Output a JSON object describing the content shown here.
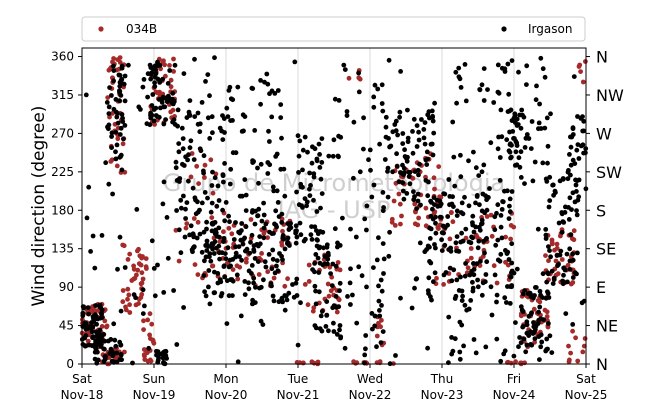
{
  "chart_data": {
    "type": "scatter",
    "ylabel": "Wind direction (degree)",
    "ylim": [
      0,
      370
    ],
    "yticks": [
      0,
      45,
      90,
      135,
      180,
      225,
      270,
      315,
      360
    ],
    "xlim_days": [
      0,
      7
    ],
    "xticks": [
      {
        "day": 0,
        "weekday": "Sat",
        "date": "Nov-18"
      },
      {
        "day": 1,
        "weekday": "Sun",
        "date": "Nov-19"
      },
      {
        "day": 2,
        "weekday": "Mon",
        "date": "Nov-20"
      },
      {
        "day": 3,
        "weekday": "Tue",
        "date": "Nov-21"
      },
      {
        "day": 4,
        "weekday": "Wed",
        "date": "Nov-22"
      },
      {
        "day": 5,
        "weekday": "Thu",
        "date": "Nov-23"
      },
      {
        "day": 6,
        "weekday": "Fri",
        "date": "Nov-24"
      },
      {
        "day": 7,
        "weekday": "Sat",
        "date": "Nov-25"
      }
    ],
    "right_axis_labels": [
      {
        "deg": 0,
        "label": "N"
      },
      {
        "deg": 45,
        "label": "NE"
      },
      {
        "deg": 90,
        "label": "E"
      },
      {
        "deg": 135,
        "label": "SE"
      },
      {
        "deg": 180,
        "label": "S"
      },
      {
        "deg": 225,
        "label": "SW"
      },
      {
        "deg": 270,
        "label": "W"
      },
      {
        "deg": 315,
        "label": "NW"
      },
      {
        "deg": 360,
        "label": "N"
      }
    ],
    "legend": {
      "placement": "top",
      "ncol": 2
    },
    "watermark": [
      "Grupo de Micrometeorologia",
      "IAG - USP"
    ],
    "grid": "vertical",
    "series": [
      {
        "name": "034B",
        "color": "#a52a2a",
        "clusters": [
          {
            "x": [
              0.0,
              0.35
            ],
            "y": [
              20,
              70
            ],
            "n": 60
          },
          {
            "x": [
              0.25,
              0.6
            ],
            "y": [
              0,
              20
            ],
            "n": 25
          },
          {
            "x": [
              0.35,
              0.6
            ],
            "y": [
              220,
              360
            ],
            "n": 40
          },
          {
            "x": [
              0.55,
              0.9
            ],
            "y": [
              60,
              140
            ],
            "n": 40
          },
          {
            "x": [
              0.85,
              1.0
            ],
            "y": [
              0,
              60
            ],
            "n": 20
          },
          {
            "x": [
              0.95,
              1.3
            ],
            "y": [
              280,
              360
            ],
            "n": 45
          },
          {
            "x": [
              1.3,
              2.0
            ],
            "y": [
              100,
              250
            ],
            "n": 30
          },
          {
            "x": [
              1.8,
              2.9
            ],
            "y": [
              90,
              170
            ],
            "n": 60
          },
          {
            "x": [
              2.95,
              3.3
            ],
            "y": [
              0,
              3
            ],
            "n": 8
          },
          {
            "x": [
              3.1,
              3.6
            ],
            "y": [
              60,
              130
            ],
            "n": 30
          },
          {
            "x": [
              3.7,
              4.0
            ],
            "y": [
              330,
              350
            ],
            "n": 4
          },
          {
            "x": [
              3.75,
              4.4
            ],
            "y": [
              0,
              3
            ],
            "n": 10
          },
          {
            "x": [
              4.1,
              4.2
            ],
            "y": [
              20,
              60
            ],
            "n": 8
          },
          {
            "x": [
              4.3,
              5.0
            ],
            "y": [
              160,
              250
            ],
            "n": 50
          },
          {
            "x": [
              4.9,
              6.0
            ],
            "y": [
              90,
              180
            ],
            "n": 50
          },
          {
            "x": [
              5.9,
              6.2
            ],
            "y": [
              0,
              3
            ],
            "n": 8
          },
          {
            "x": [
              6.1,
              6.5
            ],
            "y": [
              20,
              90
            ],
            "n": 40
          },
          {
            "x": [
              6.4,
              6.85
            ],
            "y": [
              90,
              160
            ],
            "n": 40
          },
          {
            "x": [
              6.75,
              7.0
            ],
            "y": [
              0,
              40
            ],
            "n": 10
          },
          {
            "x": [
              6.9,
              7.0
            ],
            "y": [
              330,
              360
            ],
            "n": 5
          }
        ]
      },
      {
        "name": "Irgason",
        "color": "#000000",
        "clusters": [
          {
            "x": [
              0.0,
              0.3
            ],
            "y": [
              20,
              70
            ],
            "n": 60
          },
          {
            "x": [
              0.15,
              0.55
            ],
            "y": [
              0,
              30
            ],
            "n": 40
          },
          {
            "x": [
              0.35,
              0.6
            ],
            "y": [
              240,
              360
            ],
            "n": 45
          },
          {
            "x": [
              0.9,
              1.3
            ],
            "y": [
              280,
              360
            ],
            "n": 60
          },
          {
            "x": [
              1.0,
              1.2
            ],
            "y": [
              0,
              15
            ],
            "n": 20
          },
          {
            "x": [
              1.3,
              2.0
            ],
            "y": [
              130,
              300
            ],
            "n": 90
          },
          {
            "x": [
              1.7,
              3.0
            ],
            "y": [
              70,
              180
            ],
            "n": 170
          },
          {
            "x": [
              2.0,
              2.8
            ],
            "y": [
              180,
              330
            ],
            "n": 40
          },
          {
            "x": [
              2.95,
              3.35
            ],
            "y": [
              140,
              270
            ],
            "n": 50
          },
          {
            "x": [
              3.2,
              3.6
            ],
            "y": [
              30,
              140
            ],
            "n": 50
          },
          {
            "x": [
              3.5,
              4.2
            ],
            "y": [
              0,
              360
            ],
            "n": 50
          },
          {
            "x": [
              4.2,
              4.9
            ],
            "y": [
              180,
              300
            ],
            "n": 80
          },
          {
            "x": [
              4.8,
              6.0
            ],
            "y": [
              90,
              200
            ],
            "n": 140
          },
          {
            "x": [
              5.2,
              6.5
            ],
            "y": [
              200,
              360
            ],
            "n": 50
          },
          {
            "x": [
              5.0,
              6.5
            ],
            "y": [
              0,
              90
            ],
            "n": 50
          },
          {
            "x": [
              5.9,
              6.2
            ],
            "y": [
              230,
              300
            ],
            "n": 35
          },
          {
            "x": [
              6.1,
              6.5
            ],
            "y": [
              20,
              90
            ],
            "n": 40
          },
          {
            "x": [
              6.4,
              6.9
            ],
            "y": [
              90,
              220
            ],
            "n": 60
          },
          {
            "x": [
              6.75,
              7.0
            ],
            "y": [
              200,
              290
            ],
            "n": 30
          },
          {
            "x": [
              0.0,
              7.0
            ],
            "y": [
              0,
              360
            ],
            "n": 250
          }
        ]
      }
    ]
  }
}
